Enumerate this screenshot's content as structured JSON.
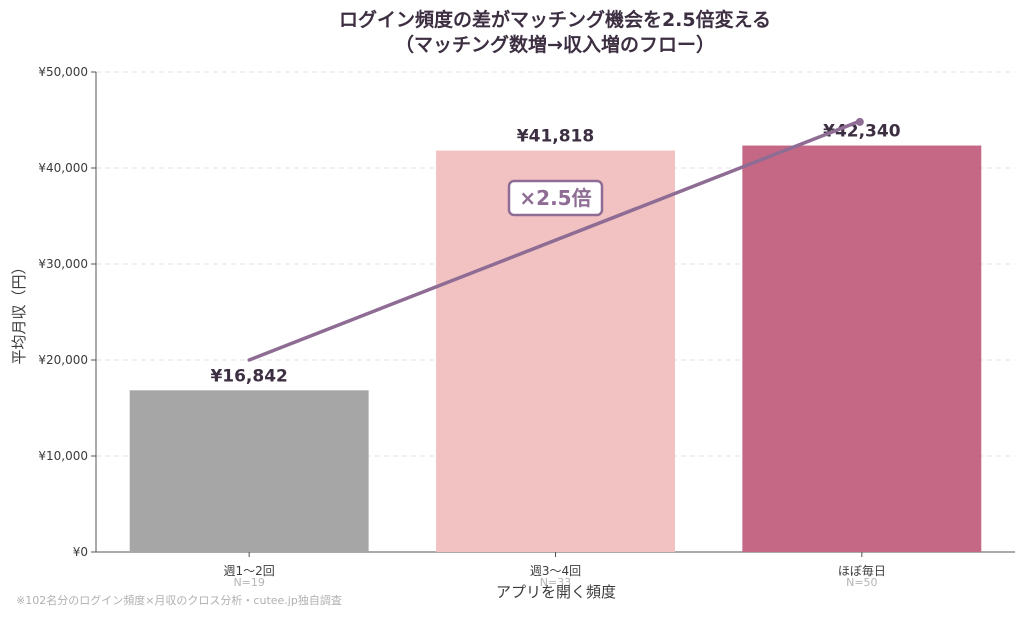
{
  "chart_data": {
    "type": "bar",
    "title": "ログイン頻度の差がマッチング機会を2.5倍変える",
    "subtitle": "（マッチング数増→収入増のフロー）",
    "xlabel": "アプリを開く頻度",
    "ylabel": "平均月収（円）",
    "categories": [
      "週1〜2回",
      "週3〜4回",
      "ほぼ毎日"
    ],
    "sample_sizes": [
      "N=19",
      "N=33",
      "N=50"
    ],
    "values": [
      16842,
      41818,
      42340
    ],
    "value_labels": [
      "¥16,842",
      "¥41,818",
      "¥42,340"
    ],
    "bar_colors": [
      "#a6a6a6",
      "#f2c2c3",
      "#c56886"
    ],
    "trend_line": {
      "color": "#8e6c94",
      "start": 20000,
      "end": 44800
    },
    "ratio_annotation": "×2.5倍",
    "ylim": [
      0,
      50000
    ],
    "yticks": [
      0,
      10000,
      20000,
      30000,
      40000,
      50000
    ],
    "ytick_labels": [
      "¥0",
      "¥10,000",
      "¥20,000",
      "¥30,000",
      "¥40,000",
      "¥50,000"
    ],
    "grid": true,
    "footnote": "※102名分のログイン頻度×月収のクロス分析・cutee.jp独自調査"
  }
}
